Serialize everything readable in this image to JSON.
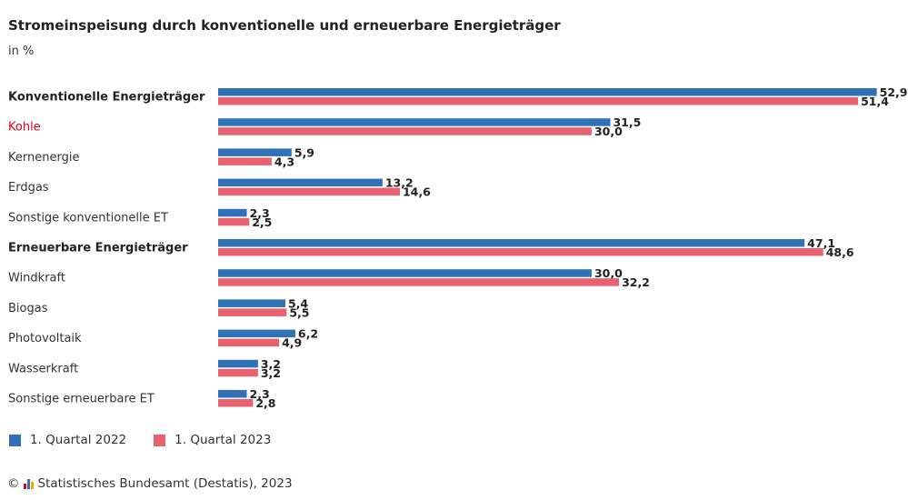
{
  "title": "Stromeinspeisung durch konventionelle und erneuerbare Energieträger",
  "subtitle": "in %",
  "colors": {
    "series1": "#2f72b8",
    "series2": "#e8616e",
    "highlight": "#e2001a"
  },
  "chart_data": {
    "type": "bar",
    "orientation": "horizontal",
    "title": "Stromeinspeisung durch konventionelle und erneuerbare Energieträger",
    "subtitle": "in %",
    "categories": [
      "Konventionelle Energieträger",
      "Kohle",
      "Kernenergie",
      "Erdgas",
      "Sonstige konventionelle ET",
      "Erneuerbare Energieträger",
      "Windkraft",
      "Biogas",
      "Photovoltaik",
      "Wasserkraft",
      "Sonstige erneuerbare ET"
    ],
    "bold_categories": [
      "Konventionelle Energieträger",
      "Erneuerbare Energieträger"
    ],
    "highlighted_categories": [
      "Kohle"
    ],
    "series": [
      {
        "name": "1. Quartal 2022",
        "values": [
          52.9,
          31.5,
          5.9,
          13.2,
          2.3,
          47.1,
          30.0,
          5.4,
          6.2,
          3.2,
          2.3
        ],
        "labels": [
          "52,9",
          "31,5",
          "5,9",
          "13,2",
          "2,3",
          "47,1",
          "30,0",
          "5,4",
          "6,2",
          "3,2",
          "2,3"
        ]
      },
      {
        "name": "1. Quartal 2023",
        "values": [
          51.4,
          30.0,
          4.3,
          14.6,
          2.5,
          48.6,
          32.2,
          5.5,
          4.9,
          3.2,
          2.8
        ],
        "labels": [
          "51,4",
          "30,0",
          "4,3",
          "14,6",
          "2,5",
          "48,6",
          "32,2",
          "5,5",
          "4,9",
          "3,2",
          "2,8"
        ]
      }
    ],
    "xlim": [
      0,
      53
    ],
    "grid": false,
    "legend": "bottom-left"
  },
  "legend": [
    {
      "label": "1. Quartal 2022"
    },
    {
      "label": "1. Quartal 2023"
    }
  ],
  "footer": {
    "copyright_symbol": "©",
    "text": "Statistisches Bundesamt (Destatis), 2023",
    "logo_icon": "destatis-logo-icon"
  }
}
